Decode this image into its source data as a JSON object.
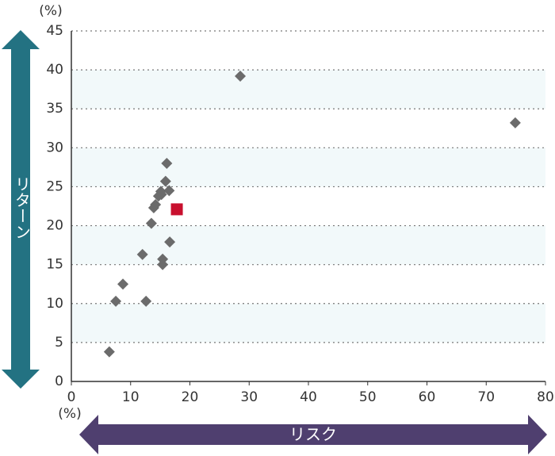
{
  "chart_data": {
    "type": "scatter",
    "x_unit": "(%)",
    "y_unit": "(%)",
    "x_label": "リスク",
    "y_label": "リターン",
    "xlim": [
      0,
      80
    ],
    "ylim": [
      0,
      45
    ],
    "xticks": [
      0,
      10,
      20,
      30,
      40,
      50,
      60,
      70,
      80
    ],
    "yticks": [
      0,
      5,
      10,
      15,
      20,
      25,
      30,
      35,
      40,
      45
    ],
    "grid": true,
    "series": [
      {
        "color": "#6b6b6b",
        "marker": "diamond",
        "x": [
          6.4,
          7.5,
          8.7,
          12.0,
          12.6,
          13.5,
          13.9,
          14.2,
          14.7,
          15.1,
          15.2,
          15.4,
          15.4,
          15.9,
          16.5,
          16.1,
          16.6,
          28.5,
          74.9
        ],
        "values": [
          3.8,
          10.3,
          12.5,
          16.3,
          10.3,
          20.3,
          22.3,
          22.7,
          23.8,
          24.4,
          24.0,
          15.7,
          15.0,
          25.7,
          24.5,
          28.0,
          17.9,
          39.2,
          33.2
        ]
      },
      {
        "color": "#c8102e",
        "marker": "square",
        "x": [
          17.8
        ],
        "values": [
          22.1
        ]
      }
    ]
  }
}
